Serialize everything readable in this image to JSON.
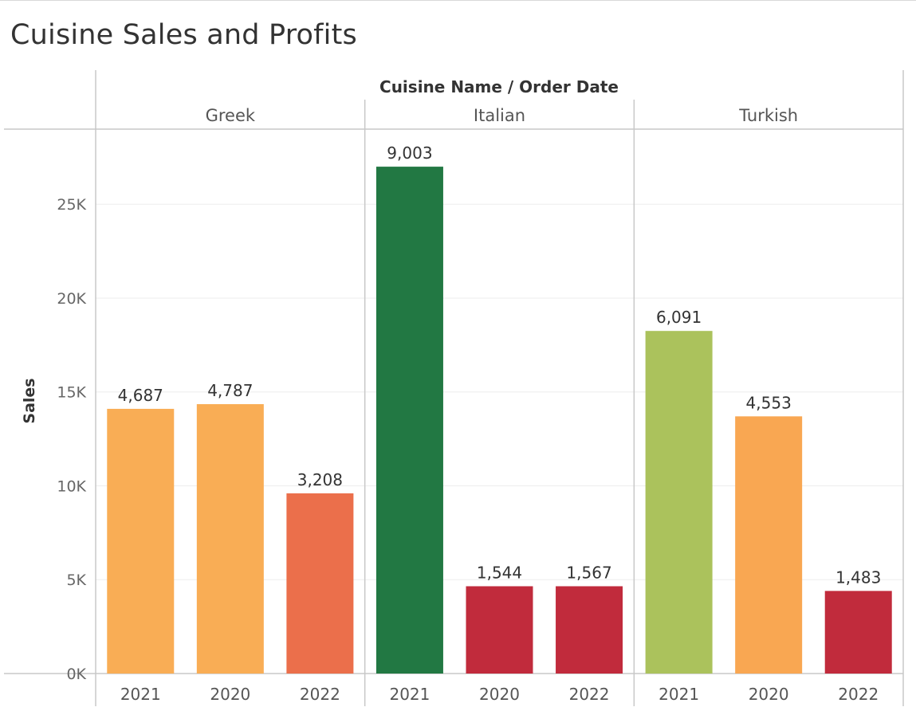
{
  "dashboard": {
    "title": "Cuisine Sales and Profits"
  },
  "chart_data": {
    "type": "bar",
    "title": "Cuisine Sales and Profits",
    "header_label": "Cuisine Name / Order Date",
    "ylabel": "Sales",
    "ylim": [
      0,
      29000
    ],
    "y_ticks": [
      0,
      5000,
      10000,
      15000,
      20000,
      25000
    ],
    "y_tick_labels": [
      "0K",
      "5K",
      "10K",
      "15K",
      "20K",
      "25K"
    ],
    "grid": true,
    "legend": "none",
    "panes": [
      {
        "name": "Greek",
        "bars": [
          {
            "year": "2021",
            "sales": 14100,
            "label": "4,687",
            "color": "#f9ad55"
          },
          {
            "year": "2020",
            "sales": 14350,
            "label": "4,787",
            "color": "#f9ad55"
          },
          {
            "year": "2022",
            "sales": 9600,
            "label": "3,208",
            "color": "#eb6f4b"
          }
        ]
      },
      {
        "name": "Italian",
        "bars": [
          {
            "year": "2021",
            "sales": 27000,
            "label": "9,003",
            "color": "#227843"
          },
          {
            "year": "2020",
            "sales": 4650,
            "label": "1,544",
            "color": "#c12b3c"
          },
          {
            "year": "2022",
            "sales": 4650,
            "label": "1,567",
            "color": "#c12b3c"
          }
        ]
      },
      {
        "name": "Turkish",
        "bars": [
          {
            "year": "2021",
            "sales": 18250,
            "label": "6,091",
            "color": "#abc25c"
          },
          {
            "year": "2020",
            "sales": 13700,
            "label": "4,553",
            "color": "#f9a752"
          },
          {
            "year": "2022",
            "sales": 4400,
            "label": "1,483",
            "color": "#c12b3c"
          }
        ]
      }
    ]
  }
}
